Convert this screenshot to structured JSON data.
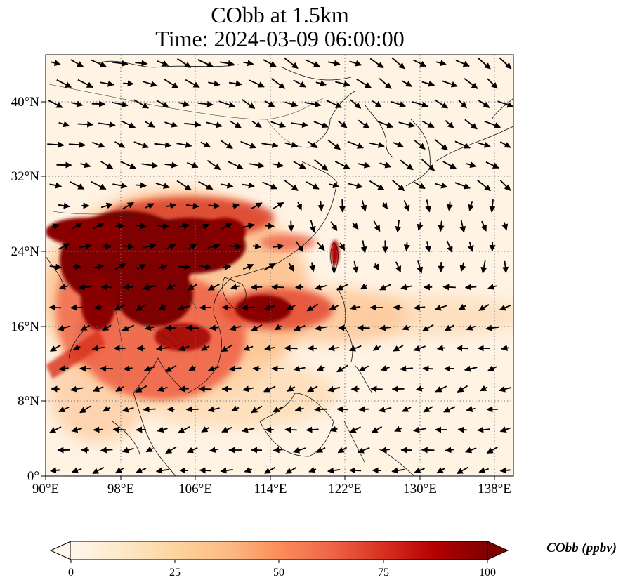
{
  "title": {
    "line1": "CObb at 1.5km",
    "line2": "Time: 2024-03-09 06:00:00"
  },
  "map": {
    "projection": "PlateCarree",
    "lon_range": [
      90,
      140
    ],
    "lat_range": [
      0,
      45
    ],
    "gridlines": "dotted",
    "coastlines": true,
    "borders": true,
    "x_tick_labels": [
      "90°E",
      "98°E",
      "106°E",
      "114°E",
      "122°E",
      "130°E",
      "138°E"
    ],
    "y_tick_labels": [
      "0°",
      "8°N",
      "16°N",
      "24°N",
      "32°N",
      "40°N"
    ],
    "wind_vectors": true
  },
  "colorbar": {
    "label": "CObb (ppbv)",
    "ticks": [
      "0",
      "25",
      "50",
      "75",
      "100"
    ],
    "range": [
      0,
      100
    ],
    "extend": "both",
    "colormap": "OrRd",
    "colors": [
      "#fff7ec",
      "#fee8c8",
      "#fdd49e",
      "#fdbb84",
      "#fc8d59",
      "#ef6548",
      "#d7301f",
      "#b30000",
      "#7f0000"
    ]
  }
}
